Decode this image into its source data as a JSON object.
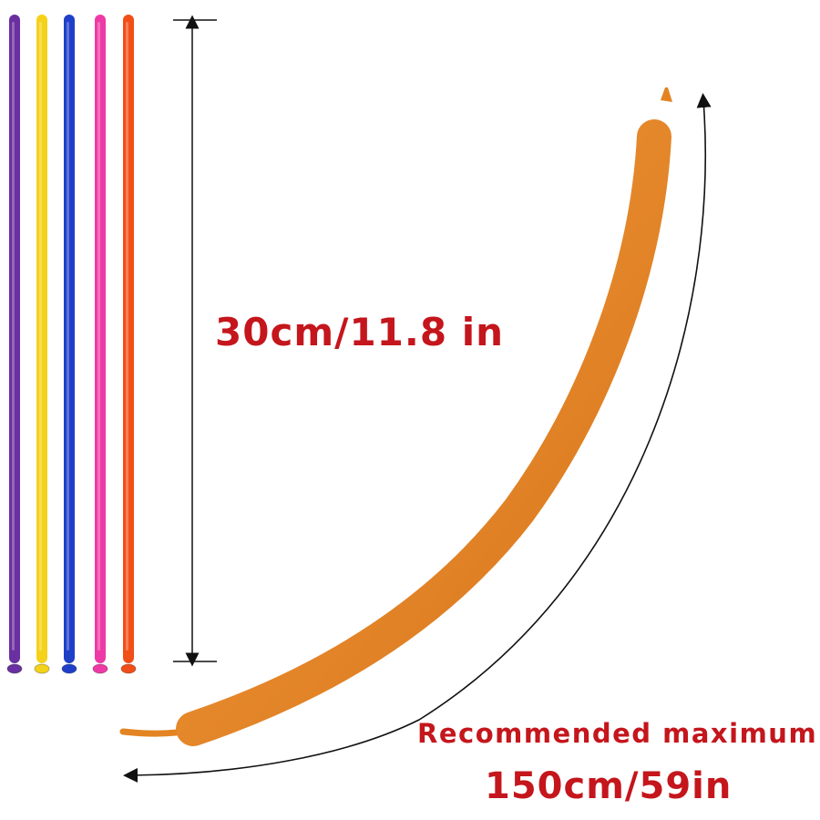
{
  "labels": {
    "deflated_length": "30cm/11.8 in",
    "max_caption": "Recommended  maximum",
    "max_length": "150cm/59in"
  },
  "balloons": [
    {
      "name": "purple",
      "color": "#6a2fa0"
    },
    {
      "name": "yellow",
      "color": "#f4d21a"
    },
    {
      "name": "blue",
      "color": "#1f3fc8"
    },
    {
      "name": "pink",
      "color": "#ee3aa6"
    },
    {
      "name": "orange-red",
      "color": "#f24e17"
    }
  ],
  "inflated_balloon": {
    "color": "#e38422"
  },
  "colors": {
    "label_text": "#c4161c",
    "dimension_lines": "#111111"
  }
}
